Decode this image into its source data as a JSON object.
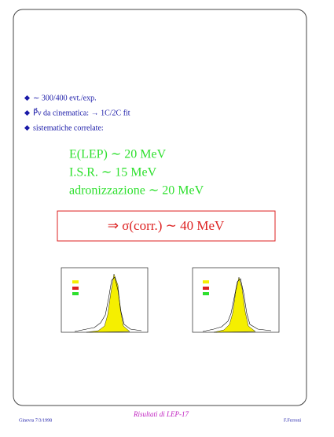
{
  "bullets": [
    "∼ 300/400 evt./exp.",
    "P⃗ν da cinematica: → 1C/2C fit",
    "sistematiche correlate:"
  ],
  "systematics": [
    "E(LEP) ∼ 20 MeV",
    "I.S.R. ∼ 15 MeV",
    "adronizzazione ∼ 20 MeV"
  ],
  "result": "⇒  σ(corr.)  ∼  40 MeV",
  "footer": {
    "left": "Ginevra 7/3/1998",
    "center": "Risultati di LEP-17",
    "right": "F.Ferroni"
  }
}
